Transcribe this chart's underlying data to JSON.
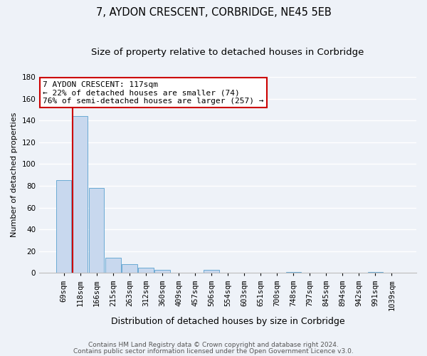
{
  "title": "7, AYDON CRESCENT, CORBRIDGE, NE45 5EB",
  "subtitle": "Size of property relative to detached houses in Corbridge",
  "xlabel": "Distribution of detached houses by size in Corbridge",
  "ylabel": "Number of detached properties",
  "categories": [
    "69sqm",
    "118sqm",
    "166sqm",
    "215sqm",
    "263sqm",
    "312sqm",
    "360sqm",
    "409sqm",
    "457sqm",
    "506sqm",
    "554sqm",
    "603sqm",
    "651sqm",
    "700sqm",
    "748sqm",
    "797sqm",
    "845sqm",
    "894sqm",
    "942sqm",
    "991sqm",
    "1039sqm"
  ],
  "values": [
    85,
    144,
    78,
    14,
    8,
    5,
    3,
    0,
    0,
    3,
    0,
    0,
    0,
    0,
    1,
    0,
    0,
    0,
    0,
    1,
    0
  ],
  "bar_color": "#c8d8ee",
  "bar_edge_color": "#6aaad4",
  "bar_edge_width": 0.7,
  "red_line_x": 0.555,
  "red_line_color": "#cc0000",
  "annotation_line1": "7 AYDON CRESCENT: 117sqm",
  "annotation_line2": "← 22% of detached houses are smaller (74)",
  "annotation_line3": "76% of semi-detached houses are larger (257) →",
  "annotation_box_color": "white",
  "annotation_box_edge_color": "#cc0000",
  "ylim": [
    0,
    180
  ],
  "yticks": [
    0,
    20,
    40,
    60,
    80,
    100,
    120,
    140,
    160,
    180
  ],
  "background_color": "#eef2f8",
  "grid_color": "white",
  "footer_line1": "Contains HM Land Registry data © Crown copyright and database right 2024.",
  "footer_line2": "Contains public sector information licensed under the Open Government Licence v3.0.",
  "title_fontsize": 10.5,
  "subtitle_fontsize": 9.5,
  "xlabel_fontsize": 9,
  "ylabel_fontsize": 8,
  "tick_fontsize": 7.5,
  "annotation_fontsize": 8,
  "footer_fontsize": 6.5
}
